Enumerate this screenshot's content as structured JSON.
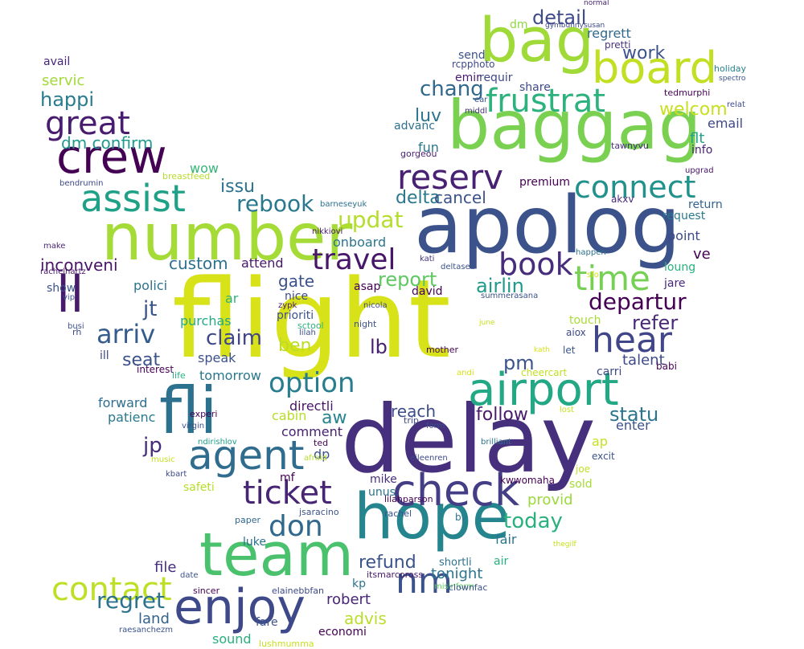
{
  "words": [
    {
      "text": "flight",
      "color": "#d8e219"
    },
    {
      "text": "delay",
      "color": "#46307e"
    },
    {
      "text": "apolog",
      "color": "#3b528b"
    },
    {
      "text": "baggag",
      "color": "#7ad151"
    },
    {
      "text": "number",
      "color": "#a5db36"
    },
    {
      "text": "team",
      "color": "#4ac16d"
    },
    {
      "text": "fli",
      "color": "#2c728e"
    },
    {
      "text": "hope",
      "color": "#25858e"
    },
    {
      "text": "bag",
      "color": "#a0da39"
    },
    {
      "text": "check",
      "color": "#433e85"
    },
    {
      "text": "crew",
      "color": "#440154"
    },
    {
      "text": "ll",
      "color": "#481a6c"
    },
    {
      "text": "airport",
      "color": "#22a884"
    },
    {
      "text": "board",
      "color": "#c2df23"
    },
    {
      "text": "enjoy",
      "color": "#3e4989"
    },
    {
      "text": "agent",
      "color": "#2f6c8e"
    },
    {
      "text": "assist",
      "color": "#1fa188"
    },
    {
      "text": "reserv",
      "color": "#482173"
    },
    {
      "text": "nm",
      "color": "#3b528b"
    },
    {
      "text": "frustrat",
      "color": "#2db27d"
    },
    {
      "text": "time",
      "color": "#75d054"
    },
    {
      "text": "hear",
      "color": "#404688"
    },
    {
      "text": "great",
      "color": "#481c6e"
    },
    {
      "text": "ticket",
      "color": "#482475"
    },
    {
      "text": "connect",
      "color": "#21918c"
    },
    {
      "text": "book",
      "color": "#472d7b"
    },
    {
      "text": "travel",
      "color": "#481668"
    },
    {
      "text": "contact",
      "color": "#bddf26"
    },
    {
      "text": "don",
      "color": "#31688e"
    },
    {
      "text": "option",
      "color": "#287d8e"
    },
    {
      "text": "arriv",
      "color": "#365c8d"
    },
    {
      "text": "departur",
      "color": "#440154"
    },
    {
      "text": "rebook",
      "color": "#2a788e"
    },
    {
      "text": "today",
      "color": "#2ab07f"
    },
    {
      "text": "updat",
      "color": "#b5de2b"
    },
    {
      "text": "detail",
      "color": "#3e4a89"
    },
    {
      "text": "regret",
      "color": "#2c728e"
    },
    {
      "text": "refund",
      "color": "#3b528b"
    },
    {
      "text": "jp",
      "color": "#472c7a"
    },
    {
      "text": "statu",
      "color": "#2b758e"
    },
    {
      "text": "claim",
      "color": "#3f4788"
    },
    {
      "text": "report",
      "color": "#5ec962"
    },
    {
      "text": "airlin",
      "color": "#1f9a8a"
    },
    {
      "text": "follow",
      "color": "#481b6d"
    },
    {
      "text": "chang",
      "color": "#31688e"
    },
    {
      "text": "happi",
      "color": "#287c8e"
    },
    {
      "text": "pm",
      "color": "#3b528b"
    },
    {
      "text": "lb",
      "color": "#482071"
    },
    {
      "text": "aw",
      "color": "#25848e"
    },
    {
      "text": "welcom",
      "color": "#c8e020"
    },
    {
      "text": "refer",
      "color": "#482878"
    },
    {
      "text": "work",
      "color": "#3b528b"
    },
    {
      "text": "luv",
      "color": "#2c738e"
    },
    {
      "text": "dm confirm",
      "color": "#1e9b8a"
    },
    {
      "text": "issu",
      "color": "#2c728e"
    },
    {
      "text": "delta",
      "color": "#2a778e"
    },
    {
      "text": "cancel",
      "color": "#3b528b"
    },
    {
      "text": "inconveni",
      "color": "#481467"
    },
    {
      "text": "custom",
      "color": "#2c728e"
    },
    {
      "text": "gate",
      "color": "#3b528b"
    },
    {
      "text": "ben",
      "color": "#bade28"
    },
    {
      "text": "seat",
      "color": "#3b528b"
    },
    {
      "text": "jt",
      "color": "#3a548c"
    },
    {
      "text": "regrett",
      "color": "#31688e"
    },
    {
      "text": "reach",
      "color": "#3d4d8a"
    },
    {
      "text": "advis",
      "color": "#b8de29"
    },
    {
      "text": "provid",
      "color": "#9bd93c"
    },
    {
      "text": "talent",
      "color": "#3e4a89"
    },
    {
      "text": "robert",
      "color": "#482576"
    },
    {
      "text": "land",
      "color": "#33638d"
    },
    {
      "text": "tonight",
      "color": "#2b758e"
    },
    {
      "text": "forward",
      "color": "#2e6e8e"
    },
    {
      "text": "patienc",
      "color": "#2a788e"
    },
    {
      "text": "file",
      "color": "#472d7b"
    },
    {
      "text": "email",
      "color": "#3f4889"
    },
    {
      "text": "wow",
      "color": "#35b779"
    },
    {
      "text": "servic",
      "color": "#a2da37"
    },
    {
      "text": "avail",
      "color": "#482677"
    },
    {
      "text": "flt",
      "color": "#20a386"
    },
    {
      "text": "info",
      "color": "#482374"
    },
    {
      "text": "ve",
      "color": "#440154"
    },
    {
      "text": "point",
      "color": "#3e4a89"
    },
    {
      "text": "loung",
      "color": "#2ab07f"
    },
    {
      "text": "jare",
      "color": "#482878"
    },
    {
      "text": "return",
      "color": "#33638d"
    },
    {
      "text": "request",
      "color": "#2a788e"
    },
    {
      "text": "premium",
      "color": "#440154"
    },
    {
      "text": "akxv",
      "color": "#472a7a"
    },
    {
      "text": "requir",
      "color": "#3f4788"
    },
    {
      "text": "emir",
      "color": "#481a6c"
    },
    {
      "text": "share",
      "color": "#3e4989"
    },
    {
      "text": "send",
      "color": "#3b528b"
    },
    {
      "text": "advanc",
      "color": "#2c728e"
    },
    {
      "text": "fun",
      "color": "#2a768e"
    },
    {
      "text": "dm",
      "color": "#8fd744"
    },
    {
      "text": "pretti",
      "color": "#46337f"
    },
    {
      "text": "rcpphoto",
      "color": "#3e4989"
    },
    {
      "text": "ear",
      "color": "#3b528b"
    },
    {
      "text": "middl",
      "color": "#46307e"
    },
    {
      "text": "gorgeou",
      "color": "#481d6f"
    },
    {
      "text": "tawnyvu",
      "color": "#46317e"
    },
    {
      "text": "upgrad",
      "color": "#481467"
    },
    {
      "text": "tedmurphi",
      "color": "#440154"
    },
    {
      "text": "holiday",
      "color": "#26828e"
    },
    {
      "text": "spectro",
      "color": "#3b528b"
    },
    {
      "text": "relat",
      "color": "#3e4c8a"
    },
    {
      "text": "normal",
      "color": "#482475"
    },
    {
      "text": "gymbunnysusan",
      "color": "#3e4989"
    },
    {
      "text": "attend",
      "color": "#481769"
    },
    {
      "text": "onboard",
      "color": "#2b758e"
    },
    {
      "text": "polici",
      "color": "#2c728e"
    },
    {
      "text": "purchas",
      "color": "#24aa83"
    },
    {
      "text": "ar",
      "color": "#2db27d"
    },
    {
      "text": "speak",
      "color": "#3b528b"
    },
    {
      "text": "tomorrow",
      "color": "#2a778e"
    },
    {
      "text": "ill",
      "color": "#3e4989"
    },
    {
      "text": "interest",
      "color": "#440154"
    },
    {
      "text": "prioriti",
      "color": "#3b528b"
    },
    {
      "text": "nice",
      "color": "#3e4989"
    },
    {
      "text": "asap",
      "color": "#440154"
    },
    {
      "text": "david",
      "color": "#440154"
    },
    {
      "text": "directli",
      "color": "#481668"
    },
    {
      "text": "comment",
      "color": "#482173"
    },
    {
      "text": "cabin",
      "color": "#b5de2b"
    },
    {
      "text": "dp",
      "color": "#3b528b"
    },
    {
      "text": "mf",
      "color": "#440154"
    },
    {
      "text": "mike",
      "color": "#46307e"
    },
    {
      "text": "unus",
      "color": "#2c738e"
    },
    {
      "text": "enter",
      "color": "#3b528b"
    },
    {
      "text": "ap",
      "color": "#c8e020"
    },
    {
      "text": "excit",
      "color": "#3b528b"
    },
    {
      "text": "joe",
      "color": "#c2df23"
    },
    {
      "text": "sold",
      "color": "#a5db36"
    },
    {
      "text": "touch",
      "color": "#a8db34"
    },
    {
      "text": "aiox",
      "color": "#3e4989"
    },
    {
      "text": "let",
      "color": "#3b528b"
    },
    {
      "text": "carri",
      "color": "#3e4989"
    },
    {
      "text": "babi",
      "color": "#440154"
    },
    {
      "text": "cheercart",
      "color": "#c2df23"
    },
    {
      "text": "andi",
      "color": "#d8e219"
    },
    {
      "text": "kath",
      "color": "#d8e219"
    },
    {
      "text": "june",
      "color": "#c8e020"
    },
    {
      "text": "happen",
      "color": "#2c728e"
    },
    {
      "text": "sfo",
      "color": "#d8e219"
    },
    {
      "text": "summerasana",
      "color": "#3b528b"
    },
    {
      "text": "kati",
      "color": "#46337f"
    },
    {
      "text": "deltasea",
      "color": "#3b528b"
    },
    {
      "text": "nikkiovi",
      "color": "#481769"
    },
    {
      "text": "barneseyuk",
      "color": "#2c728e"
    },
    {
      "text": "zypk",
      "color": "#481a6c"
    },
    {
      "text": "nicola",
      "color": "#3e4989"
    },
    {
      "text": "sctool",
      "color": "#2db27d"
    },
    {
      "text": "lilah",
      "color": "#3b528b"
    },
    {
      "text": "night",
      "color": "#3b528b"
    },
    {
      "text": "mother",
      "color": "#440154"
    },
    {
      "text": "life",
      "color": "#2ab07f"
    },
    {
      "text": "experi",
      "color": "#440154"
    },
    {
      "text": "virgin",
      "color": "#3b528b"
    },
    {
      "text": "ndirishlov",
      "color": "#1fa188"
    },
    {
      "text": "music",
      "color": "#c8e020"
    },
    {
      "text": "kbart",
      "color": "#3e4989"
    },
    {
      "text": "afraid",
      "color": "#b5de2b"
    },
    {
      "text": "ted",
      "color": "#440154"
    },
    {
      "text": "trip",
      "color": "#3e4989"
    },
    {
      "text": "form",
      "color": "#3b528b"
    },
    {
      "text": "brilliant",
      "color": "#2c728e"
    },
    {
      "text": "eileenren",
      "color": "#3e4989"
    },
    {
      "text": "lilahparson",
      "color": "#440154"
    },
    {
      "text": "kwwomaha",
      "color": "#440154"
    },
    {
      "text": "lost",
      "color": "#c8e020"
    },
    {
      "text": "jsaracino",
      "color": "#3b528b"
    },
    {
      "text": "rachel",
      "color": "#3b528b"
    },
    {
      "text": "paper",
      "color": "#31688e"
    },
    {
      "text": "bv",
      "color": "#2a778e"
    },
    {
      "text": "luke",
      "color": "#2c728e"
    },
    {
      "text": "fair",
      "color": "#2a768e"
    },
    {
      "text": "air",
      "color": "#2ab07f"
    },
    {
      "text": "thegilf",
      "color": "#c8e020"
    },
    {
      "text": "shortli",
      "color": "#2c728e"
    },
    {
      "text": "itsmarcoross",
      "color": "#481769"
    },
    {
      "text": "kp",
      "color": "#2c728e"
    },
    {
      "text": "misinform",
      "color": "#5ec962"
    },
    {
      "text": "clownfac",
      "color": "#3b528b"
    },
    {
      "text": "elainebbfan",
      "color": "#3e4989"
    },
    {
      "text": "sincer",
      "color": "#440154"
    },
    {
      "text": "date",
      "color": "#3b528b"
    },
    {
      "text": "fare",
      "color": "#3b528b"
    },
    {
      "text": "economi",
      "color": "#440154"
    },
    {
      "text": "sound",
      "color": "#2ab07f"
    },
    {
      "text": "lushmumma",
      "color": "#c8e020"
    },
    {
      "text": "raesanchezm",
      "color": "#3b528b"
    },
    {
      "text": "breastfeed",
      "color": "#b5de2b"
    },
    {
      "text": "bendrumin",
      "color": "#3e4989"
    },
    {
      "text": "make",
      "color": "#482475"
    },
    {
      "text": "rachelhartz",
      "color": "#481769"
    },
    {
      "text": "show",
      "color": "#3b528b"
    },
    {
      "text": "vip",
      "color": "#3b528b"
    },
    {
      "text": "busi",
      "color": "#3b528b"
    },
    {
      "text": "rh",
      "color": "#3e4989"
    },
    {
      "text": "safeti",
      "color": "#b5de2b"
    }
  ]
}
